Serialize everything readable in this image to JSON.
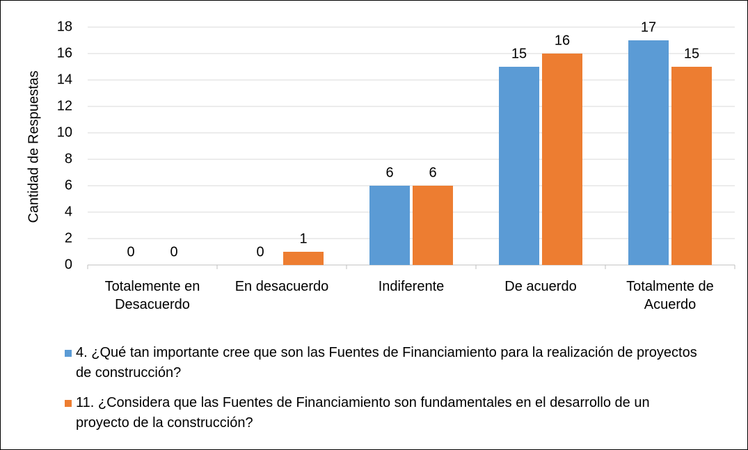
{
  "chart_data": {
    "type": "bar",
    "y_label": "Cantidad de Respuestas",
    "categories": [
      "Totalemente en Desacuerdo",
      "En desacuerdo",
      "Indiferente",
      "De acuerdo",
      "Totalmente de Acuerdo"
    ],
    "series": [
      {
        "name": "4. ¿Qué tan importante cree que son las Fuentes de Financiamiento para la realización de proyectos de construcción?",
        "color": "#5b9bd5",
        "values": [
          0,
          0,
          6,
          15,
          17
        ]
      },
      {
        "name": "11. ¿Considera que las Fuentes de Financiamiento son fundamentales en el desarrollo de un proyecto de la construcción?",
        "color": "#ed7d31",
        "values": [
          0,
          1,
          6,
          16,
          15
        ]
      }
    ],
    "ylim": [
      0,
      18
    ],
    "yticks": [
      0,
      2,
      4,
      6,
      8,
      10,
      12,
      14,
      16,
      18
    ],
    "grid": true,
    "legend": "bottom"
  }
}
